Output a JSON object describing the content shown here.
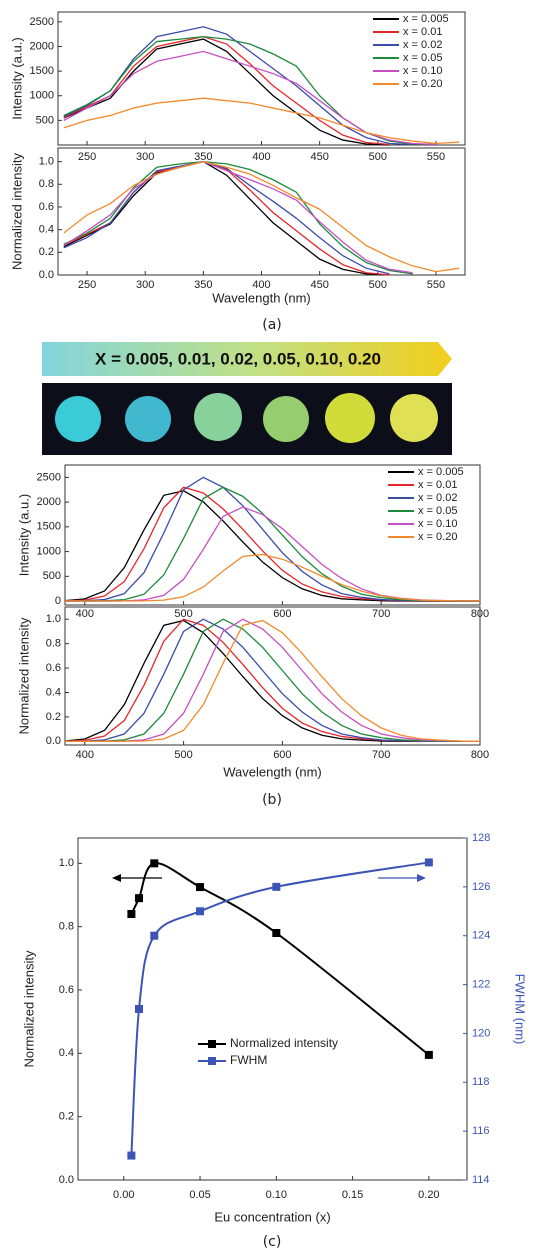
{
  "labels": {
    "a": "(a)",
    "b": "(b)",
    "c": "(c)"
  },
  "banner": "X = 0.005,  0.01,  0.02,  0.05,  0.10,  0.20",
  "chart_data": [
    {
      "type": "line",
      "ylabel": "Intensity (a.u.)",
      "x": [
        230,
        250,
        270,
        290,
        310,
        330,
        350,
        370,
        390,
        410,
        430,
        450,
        470,
        490,
        510,
        530,
        550,
        570
      ],
      "xlim": [
        225,
        575
      ],
      "xticks": [
        250,
        300,
        350,
        400,
        450,
        500,
        550
      ],
      "ylim": [
        0,
        2700
      ],
      "yticks": [
        500,
        1000,
        1500,
        2000,
        2500
      ],
      "legend": "upper right",
      "series": [
        {
          "name": "x = 0.005",
          "color": "#000000",
          "values": [
            550,
            750,
            950,
            1500,
            1950,
            2050,
            2150,
            1900,
            1450,
            1000,
            650,
            300,
            100,
            20,
            0,
            null,
            null,
            null
          ]
        },
        {
          "name": "x = 0.01",
          "color": "#e8262a",
          "values": [
            560,
            780,
            1000,
            1600,
            2000,
            2100,
            2200,
            2050,
            1650,
            1200,
            850,
            500,
            200,
            50,
            10,
            null,
            null,
            null
          ]
        },
        {
          "name": "x = 0.02",
          "color": "#3b4ba8",
          "values": [
            580,
            800,
            1100,
            1750,
            2200,
            2300,
            2400,
            2250,
            1900,
            1550,
            1200,
            800,
            400,
            150,
            30,
            10,
            null,
            null
          ]
        },
        {
          "name": "x = 0.05",
          "color": "#1c8a3a",
          "values": [
            600,
            820,
            1100,
            1700,
            2100,
            2150,
            2200,
            2150,
            2050,
            1850,
            1600,
            1000,
            550,
            250,
            80,
            20,
            10,
            null
          ]
        },
        {
          "name": "x = 0.10",
          "color": "#c64fc4",
          "values": [
            500,
            750,
            1000,
            1450,
            1700,
            1800,
            1900,
            1750,
            1600,
            1450,
            1250,
            900,
            550,
            250,
            100,
            30,
            10,
            null
          ]
        },
        {
          "name": "x = 0.20",
          "color": "#f28a2c",
          "values": [
            350,
            500,
            600,
            750,
            850,
            900,
            950,
            900,
            850,
            750,
            650,
            550,
            400,
            250,
            150,
            80,
            30,
            60
          ]
        }
      ]
    },
    {
      "type": "line",
      "ylabel": "Normalized intensity",
      "xlabel": "Wavelength (nm)",
      "x": [
        230,
        250,
        270,
        290,
        310,
        330,
        350,
        370,
        390,
        410,
        430,
        450,
        470,
        490,
        510,
        530,
        550,
        570
      ],
      "xlim": [
        225,
        575
      ],
      "xticks": [
        250,
        300,
        350,
        400,
        450,
        500,
        550
      ],
      "ylim": [
        0,
        1.12
      ],
      "yticks": [
        {
          "value": 0,
          "label": "0.0"
        },
        0.2,
        0.4,
        0.6,
        0.8,
        {
          "value": 1,
          "label": "1.0"
        }
      ],
      "series": [
        {
          "color": "#000000",
          "values": [
            0.25,
            0.35,
            0.45,
            0.7,
            0.9,
            0.95,
            1.0,
            0.88,
            0.67,
            0.46,
            0.3,
            0.14,
            0.05,
            0.01,
            0,
            null,
            null,
            null
          ]
        },
        {
          "color": "#e8262a",
          "values": [
            0.26,
            0.36,
            0.46,
            0.73,
            0.91,
            0.95,
            1.0,
            0.93,
            0.75,
            0.55,
            0.39,
            0.23,
            0.09,
            0.02,
            0,
            null,
            null,
            null
          ]
        },
        {
          "color": "#3b4ba8",
          "values": [
            0.24,
            0.33,
            0.46,
            0.73,
            0.92,
            0.96,
            1.0,
            0.94,
            0.79,
            0.65,
            0.5,
            0.33,
            0.17,
            0.06,
            0.01,
            null,
            null,
            null
          ]
        },
        {
          "color": "#1c8a3a",
          "values": [
            0.27,
            0.37,
            0.5,
            0.77,
            0.95,
            0.98,
            1.0,
            0.98,
            0.93,
            0.84,
            0.73,
            0.45,
            0.25,
            0.11,
            0.04,
            0.01,
            null,
            null
          ]
        },
        {
          "color": "#c64fc4",
          "values": [
            0.26,
            0.39,
            0.53,
            0.76,
            0.89,
            0.95,
            1.0,
            0.92,
            0.84,
            0.76,
            0.66,
            0.47,
            0.29,
            0.13,
            0.05,
            0.02,
            null,
            null
          ]
        },
        {
          "color": "#f28a2c",
          "values": [
            0.37,
            0.53,
            0.63,
            0.79,
            0.89,
            0.95,
            1.0,
            0.95,
            0.89,
            0.79,
            0.68,
            0.58,
            0.42,
            0.26,
            0.16,
            0.08,
            0.03,
            0.06
          ]
        }
      ]
    },
    {
      "type": "line",
      "ylabel": "Intensity (a.u.)",
      "x": [
        380,
        400,
        420,
        440,
        460,
        480,
        500,
        520,
        540,
        560,
        580,
        600,
        620,
        640,
        660,
        680,
        700,
        720,
        740,
        760,
        780,
        800
      ],
      "xlim": [
        380,
        800
      ],
      "xticks": [
        400,
        500,
        600,
        700,
        800
      ],
      "ylim": [
        -80,
        2750
      ],
      "yticks": [
        0,
        500,
        1000,
        1500,
        2000,
        2500
      ],
      "legend": "upper right",
      "series": [
        {
          "name": "x = 0.005",
          "color": "#000000",
          "values": [
            7,
            43,
            203,
            675,
            1440,
            2138,
            2228,
            2003,
            1620,
            1193,
            788,
            473,
            248,
            113,
            45,
            23,
            7,
            0,
            0,
            0,
            0,
            0
          ]
        },
        {
          "name": "x = 0.01",
          "color": "#e8262a",
          "values": [
            2,
            18,
            101,
            391,
            1058,
            1886,
            2300,
            2185,
            1863,
            1449,
            1012,
            621,
            345,
            184,
            92,
            46,
            23,
            7,
            0,
            0,
            0,
            0
          ]
        },
        {
          "name": "x = 0.02",
          "color": "#3b4ba8",
          "values": [
            0,
            5,
            30,
            150,
            575,
            1375,
            2250,
            2500,
            2300,
            1925,
            1450,
            975,
            600,
            325,
            150,
            75,
            30,
            13,
            5,
            0,
            0,
            0
          ]
        },
        {
          "name": "x = 0.05",
          "color": "#1c8a3a",
          "values": [
            0,
            0,
            5,
            28,
            138,
            529,
            1265,
            2070,
            2300,
            2116,
            1771,
            1334,
            897,
            552,
            299,
            138,
            69,
            28,
            12,
            5,
            0,
            0
          ]
        },
        {
          "name": "x = 0.10",
          "color": "#c64fc4",
          "values": [
            0,
            0,
            0,
            4,
            23,
            114,
            437,
            1045,
            1710,
            1900,
            1748,
            1463,
            1102,
            741,
            456,
            247,
            114,
            57,
            23,
            10,
            4,
            0
          ]
        },
        {
          "name": "x = 0.20",
          "color": "#f28a2c",
          "values": [
            0,
            0,
            0,
            1,
            3,
            18,
            86,
            285,
            608,
            903,
            941,
            846,
            684,
            504,
            333,
            200,
            105,
            48,
            19,
            10,
            3,
            0
          ]
        }
      ]
    },
    {
      "type": "line",
      "ylabel": "Normalized intensity",
      "xlabel": "Wavelength (nm)",
      "x": [
        380,
        400,
        420,
        440,
        460,
        480,
        500,
        520,
        540,
        560,
        580,
        600,
        620,
        640,
        660,
        680,
        700,
        720,
        740,
        760,
        780,
        800
      ],
      "xlim": [
        380,
        800
      ],
      "xticks": [
        400,
        500,
        600,
        700,
        800
      ],
      "ylim": [
        -0.03,
        1.1
      ],
      "yticks": [
        {
          "value": 0,
          "label": "0.0"
        },
        0.2,
        0.4,
        0.6,
        0.8,
        {
          "value": 1,
          "label": "1.0"
        }
      ],
      "series": [
        {
          "color": "#000000",
          "values": [
            0.003,
            0.019,
            0.09,
            0.3,
            0.64,
            0.95,
            0.99,
            0.89,
            0.72,
            0.53,
            0.35,
            0.21,
            0.11,
            0.05,
            0.02,
            0.01,
            0.003,
            0,
            0,
            0,
            0,
            0
          ]
        },
        {
          "color": "#e8262a",
          "values": [
            0.001,
            0.008,
            0.044,
            0.17,
            0.46,
            0.82,
            1,
            0.95,
            0.81,
            0.63,
            0.44,
            0.27,
            0.15,
            0.08,
            0.04,
            0.02,
            0.01,
            0.003,
            0,
            0,
            0,
            0
          ]
        },
        {
          "color": "#3b4ba8",
          "values": [
            0,
            0.002,
            0.012,
            0.06,
            0.23,
            0.55,
            0.9,
            1,
            0.92,
            0.77,
            0.58,
            0.39,
            0.24,
            0.13,
            0.06,
            0.03,
            0.012,
            0.005,
            0.002,
            0,
            0,
            0
          ]
        },
        {
          "color": "#1c8a3a",
          "values": [
            0,
            0,
            0.002,
            0.012,
            0.06,
            0.23,
            0.55,
            0.9,
            1,
            0.92,
            0.77,
            0.58,
            0.39,
            0.24,
            0.13,
            0.06,
            0.03,
            0.012,
            0.005,
            0.002,
            0,
            0
          ]
        },
        {
          "color": "#c64fc4",
          "values": [
            0,
            0,
            0,
            0.002,
            0.012,
            0.06,
            0.23,
            0.55,
            0.9,
            1,
            0.92,
            0.77,
            0.58,
            0.39,
            0.24,
            0.13,
            0.06,
            0.03,
            0.012,
            0.005,
            0.002,
            0
          ]
        },
        {
          "color": "#f28a2c",
          "values": [
            0,
            0,
            0,
            0.001,
            0.003,
            0.019,
            0.09,
            0.3,
            0.64,
            0.95,
            0.99,
            0.89,
            0.72,
            0.53,
            0.35,
            0.21,
            0.11,
            0.05,
            0.02,
            0.01,
            0.003,
            0
          ]
        }
      ]
    },
    {
      "type": "scatter",
      "xlabel": "Eu concentration (x)",
      "ylabel": "Normalized intensity",
      "y2label": "FWHM (nm)",
      "x": [
        0.005,
        0.01,
        0.02,
        0.05,
        0.1,
        0.2
      ],
      "xlim": [
        -0.03,
        0.225
      ],
      "xticks": [
        {
          "value": 0,
          "label": "0.00"
        },
        {
          "value": 0.05,
          "label": "0.05"
        },
        {
          "value": 0.1,
          "label": "0.10"
        },
        {
          "value": 0.15,
          "label": "0.15"
        },
        {
          "value": 0.2,
          "label": "0.20"
        }
      ],
      "ylim": [
        0,
        1.08
      ],
      "yticks": [
        {
          "value": 0,
          "label": "0.0"
        },
        0.2,
        0.4,
        0.6,
        0.8,
        {
          "value": 1,
          "label": "1.0"
        }
      ],
      "y2lim": [
        114,
        128
      ],
      "y2ticks": [
        114,
        116,
        118,
        120,
        122,
        124,
        126,
        128
      ],
      "legend": "center",
      "series": [
        {
          "name": "Normalized intensity",
          "color": "#000000",
          "values": [
            0.84,
            0.89,
            1.0,
            0.925,
            0.78,
            0.395
          ]
        },
        {
          "name": "FWHM",
          "color": "#3c55b5",
          "axis": "y2",
          "values": [
            115,
            121,
            124,
            125,
            126,
            127
          ]
        }
      ]
    }
  ]
}
